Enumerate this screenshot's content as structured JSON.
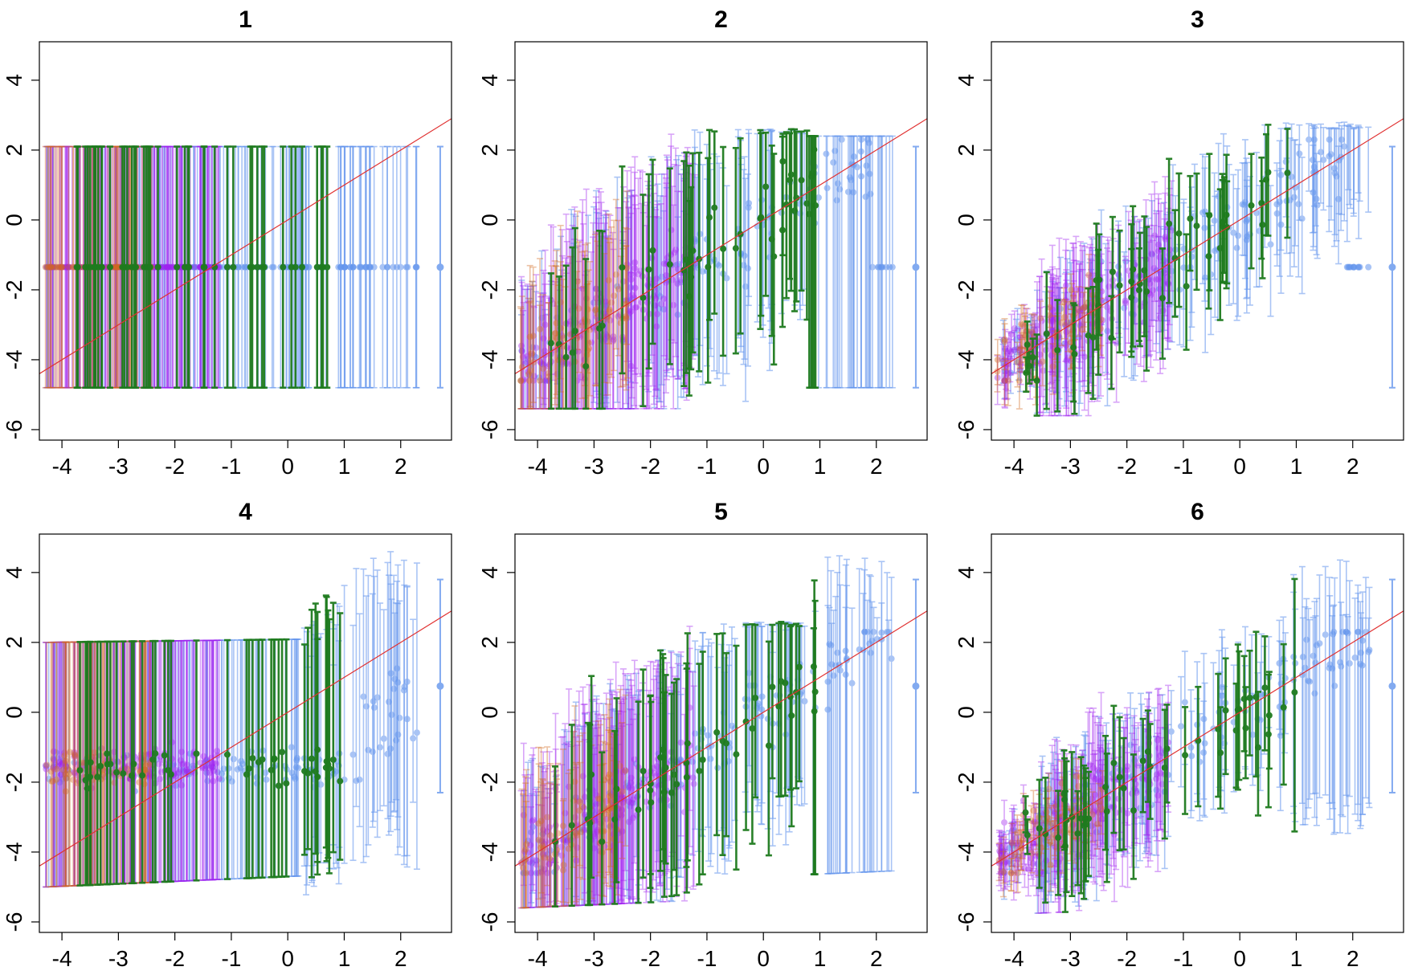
{
  "colors": {
    "blue": "#6495ED",
    "purple": "#A020F0",
    "orange": "#D2691E",
    "green": "#1E7B1E",
    "line": "#E03030"
  },
  "chart_data": [
    {
      "type": "scatter",
      "title": "1",
      "xlim": [
        -4.4,
        2.9
      ],
      "ylim": [
        -6.3,
        5.1
      ],
      "x_ticks": [
        -4,
        -3,
        -2,
        -1,
        0,
        1,
        2
      ],
      "x_tick_labels": [
        "-4",
        "-3",
        "-2",
        "-1",
        "0",
        "1",
        "2"
      ],
      "y_ticks": [
        -6,
        -4,
        -2,
        0,
        2,
        4
      ],
      "y_tick_labels": [
        "-6",
        "-4",
        "-2",
        "0",
        "2",
        "4"
      ],
      "reference_line": {
        "slope": 1,
        "intercept": 0
      },
      "mode": "flat",
      "x_max": 2.3,
      "interval": [
        -4.8,
        2.1
      ],
      "point_y": -1.35,
      "outlier": {
        "x": 2.7,
        "y": -1.35,
        "low": -4.8,
        "high": 2.1
      },
      "series": [
        {
          "name": "blue",
          "color": "blue",
          "x_range": [
            -4.3,
            2.3
          ]
        },
        {
          "name": "purple",
          "color": "purple",
          "x_range": [
            -4.3,
            -1.2
          ]
        },
        {
          "name": "orange",
          "color": "orange",
          "x_range": [
            -4.3,
            -2.4
          ]
        },
        {
          "name": "green",
          "color": "green",
          "x_range": [
            -3.8,
            1.0
          ]
        }
      ]
    },
    {
      "type": "scatter",
      "title": "2",
      "xlim": [
        -4.4,
        2.9
      ],
      "ylim": [
        -6.3,
        5.1
      ],
      "x_ticks": [
        -4,
        -3,
        -2,
        -1,
        0,
        1,
        2
      ],
      "x_tick_labels": [
        "-4",
        "-3",
        "-2",
        "-1",
        "0",
        "1",
        "2"
      ],
      "y_ticks": [
        -6,
        -4,
        -2,
        0,
        2,
        4
      ],
      "y_tick_labels": [
        "-6",
        "-4",
        "-2",
        "0",
        "2",
        "4"
      ],
      "reference_line": {
        "slope": 1,
        "intercept": 0
      },
      "mode": "half",
      "x_max": 2.3,
      "interval": [
        -4.8,
        2.1
      ],
      "point_y": -1.35,
      "outlier": {
        "x": 2.7,
        "y": -1.35,
        "low": -4.8,
        "high": 2.1
      },
      "series": [
        {
          "name": "blue",
          "color": "blue",
          "x_range": [
            -4.3,
            2.3
          ]
        },
        {
          "name": "purple",
          "color": "purple",
          "x_range": [
            -4.3,
            -1.2
          ]
        },
        {
          "name": "orange",
          "color": "orange",
          "x_range": [
            -4.3,
            -2.4
          ]
        },
        {
          "name": "green",
          "color": "green",
          "x_range": [
            -3.8,
            1.0
          ]
        }
      ]
    },
    {
      "type": "scatter",
      "title": "3",
      "xlim": [
        -4.4,
        2.9
      ],
      "ylim": [
        -6.3,
        5.1
      ],
      "x_ticks": [
        -4,
        -3,
        -2,
        -1,
        0,
        1,
        2
      ],
      "x_tick_labels": [
        "-4",
        "-3",
        "-2",
        "-1",
        "0",
        "1",
        "2"
      ],
      "y_ticks": [
        -6,
        -4,
        -2,
        0,
        2,
        4
      ],
      "y_tick_labels": [
        "-6",
        "-4",
        "-2",
        "0",
        "2",
        "4"
      ],
      "reference_line": {
        "slope": 1,
        "intercept": 0
      },
      "mode": "full",
      "x_max": 2.3,
      "interval": [
        -4.8,
        2.1
      ],
      "point_y": -1.35,
      "outlier": {
        "x": 2.7,
        "y": -1.35,
        "low": -4.8,
        "high": 2.1
      },
      "series": [
        {
          "name": "blue",
          "color": "blue",
          "x_range": [
            -4.3,
            2.3
          ]
        },
        {
          "name": "purple",
          "color": "purple",
          "x_range": [
            -4.3,
            -1.2
          ]
        },
        {
          "name": "orange",
          "color": "orange",
          "x_range": [
            -4.3,
            -2.4
          ]
        },
        {
          "name": "green",
          "color": "green",
          "x_range": [
            -3.8,
            1.0
          ]
        }
      ]
    },
    {
      "type": "scatter",
      "title": "4",
      "xlim": [
        -4.4,
        2.9
      ],
      "ylim": [
        -6.3,
        5.1
      ],
      "x_ticks": [
        -4,
        -3,
        -2,
        -1,
        0,
        1,
        2
      ],
      "x_tick_labels": [
        "-4",
        "-3",
        "-2",
        "-1",
        "0",
        "1",
        "2"
      ],
      "y_ticks": [
        -6,
        -4,
        -2,
        0,
        2,
        4
      ],
      "y_tick_labels": [
        "-6",
        "-4",
        "-2",
        "0",
        "2",
        "4"
      ],
      "reference_line": {
        "slope": 1,
        "intercept": 0
      },
      "mode": "sloped_flat",
      "x_max": 2.3,
      "interval": [
        -5.0,
        2.0
      ],
      "point_y": -1.6,
      "outlier": {
        "x": 2.7,
        "y": 0.75,
        "low": -2.3,
        "high": 3.8
      },
      "series": [
        {
          "name": "blue",
          "color": "blue",
          "x_range": [
            -4.3,
            2.3
          ]
        },
        {
          "name": "purple",
          "color": "purple",
          "x_range": [
            -4.3,
            -1.2
          ]
        },
        {
          "name": "orange",
          "color": "orange",
          "x_range": [
            -4.3,
            -2.4
          ]
        },
        {
          "name": "green",
          "color": "green",
          "x_range": [
            -3.8,
            1.0
          ]
        }
      ]
    },
    {
      "type": "scatter",
      "title": "5",
      "xlim": [
        -4.4,
        2.9
      ],
      "ylim": [
        -6.3,
        5.1
      ],
      "x_ticks": [
        -4,
        -3,
        -2,
        -1,
        0,
        1,
        2
      ],
      "x_tick_labels": [
        "-4",
        "-3",
        "-2",
        "-1",
        "0",
        "1",
        "2"
      ],
      "y_ticks": [
        -6,
        -4,
        -2,
        0,
        2,
        4
      ],
      "y_tick_labels": [
        "-6",
        "-4",
        "-2",
        "0",
        "2",
        "4"
      ],
      "reference_line": {
        "slope": 1,
        "intercept": 0
      },
      "mode": "sloped_half",
      "x_max": 2.3,
      "interval": [
        -5.0,
        2.0
      ],
      "point_y": -1.6,
      "outlier": {
        "x": 2.7,
        "y": 0.75,
        "low": -2.3,
        "high": 3.8
      },
      "series": [
        {
          "name": "blue",
          "color": "blue",
          "x_range": [
            -4.3,
            2.3
          ]
        },
        {
          "name": "purple",
          "color": "purple",
          "x_range": [
            -4.3,
            -1.2
          ]
        },
        {
          "name": "orange",
          "color": "orange",
          "x_range": [
            -4.3,
            -2.4
          ]
        },
        {
          "name": "green",
          "color": "green",
          "x_range": [
            -3.8,
            1.0
          ]
        }
      ]
    },
    {
      "type": "scatter",
      "title": "6",
      "xlim": [
        -4.4,
        2.9
      ],
      "ylim": [
        -6.3,
        5.1
      ],
      "x_ticks": [
        -4,
        -3,
        -2,
        -1,
        0,
        1,
        2
      ],
      "x_tick_labels": [
        "-4",
        "-3",
        "-2",
        "-1",
        "0",
        "1",
        "2"
      ],
      "y_ticks": [
        -6,
        -4,
        -2,
        0,
        2,
        4
      ],
      "y_tick_labels": [
        "-6",
        "-4",
        "-2",
        "0",
        "2",
        "4"
      ],
      "reference_line": {
        "slope": 1,
        "intercept": 0
      },
      "mode": "sloped_full",
      "x_max": 2.3,
      "interval": [
        -5.0,
        2.0
      ],
      "point_y": -1.6,
      "outlier": {
        "x": 2.7,
        "y": 0.75,
        "low": -2.3,
        "high": 3.8
      },
      "series": [
        {
          "name": "blue",
          "color": "blue",
          "x_range": [
            -4.3,
            2.3
          ]
        },
        {
          "name": "purple",
          "color": "purple",
          "x_range": [
            -4.3,
            -1.2
          ]
        },
        {
          "name": "orange",
          "color": "orange",
          "x_range": [
            -4.3,
            -2.4
          ]
        },
        {
          "name": "green",
          "color": "green",
          "x_range": [
            -3.8,
            1.0
          ]
        }
      ]
    }
  ]
}
